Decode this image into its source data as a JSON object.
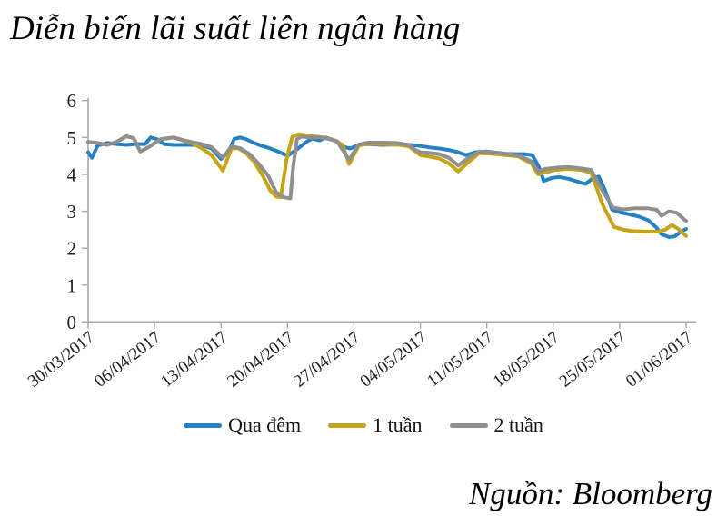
{
  "chart_data": {
    "type": "line",
    "title": "Diễn biến lãi suất liên ngân hàng",
    "source": "Nguồn: Bloomberg",
    "ylim": [
      0,
      6
    ],
    "yticks": [
      0,
      1,
      2,
      3,
      4,
      5,
      6
    ],
    "x_axis_unit": "days since 30/03/2017",
    "x_max_day": 63,
    "x_tick_days": [
      0,
      7,
      14,
      21,
      28,
      35,
      42,
      49,
      56,
      63
    ],
    "xtick_labels": [
      "30/03/2017",
      "06/04/2017",
      "13/04/2017",
      "20/04/2017",
      "27/04/2017",
      "04/05/2017",
      "11/05/2017",
      "18/05/2017",
      "25/05/2017",
      "01/06/2017"
    ],
    "grid": false,
    "legend_position": "bottom",
    "axis_color": "#a8a8a8",
    "series": [
      {
        "name": "Qua đêm",
        "color": "#2580c6",
        "points": [
          [
            0,
            4.6
          ],
          [
            0.4,
            4.45
          ],
          [
            1,
            4.78
          ],
          [
            2,
            4.85
          ],
          [
            3,
            4.82
          ],
          [
            4,
            4.8
          ],
          [
            5,
            4.82
          ],
          [
            6,
            4.82
          ],
          [
            6.6,
            5.0
          ],
          [
            7.2,
            4.96
          ],
          [
            8,
            4.82
          ],
          [
            9,
            4.8
          ],
          [
            10,
            4.8
          ],
          [
            11,
            4.8
          ],
          [
            12,
            4.79
          ],
          [
            13,
            4.7
          ],
          [
            14,
            4.42
          ],
          [
            14.8,
            4.62
          ],
          [
            15.4,
            4.96
          ],
          [
            16,
            5.0
          ],
          [
            16.6,
            4.96
          ],
          [
            17.4,
            4.86
          ],
          [
            18.2,
            4.78
          ],
          [
            19,
            4.72
          ],
          [
            20,
            4.62
          ],
          [
            21,
            4.5
          ],
          [
            22,
            4.68
          ],
          [
            23,
            4.88
          ],
          [
            23.6,
            4.97
          ],
          [
            24.4,
            4.92
          ],
          [
            25,
            5.0
          ],
          [
            25.6,
            4.95
          ],
          [
            26.2,
            4.9
          ],
          [
            27,
            4.74
          ],
          [
            27.6,
            4.7
          ],
          [
            28.4,
            4.79
          ],
          [
            29.5,
            4.82
          ],
          [
            31,
            4.8
          ],
          [
            32.5,
            4.81
          ],
          [
            34,
            4.8
          ],
          [
            35,
            4.77
          ],
          [
            36,
            4.73
          ],
          [
            37,
            4.7
          ],
          [
            38,
            4.66
          ],
          [
            39,
            4.6
          ],
          [
            39.8,
            4.52
          ],
          [
            40.8,
            4.6
          ],
          [
            42,
            4.62
          ],
          [
            43,
            4.59
          ],
          [
            44,
            4.56
          ],
          [
            45,
            4.55
          ],
          [
            46,
            4.55
          ],
          [
            46.8,
            4.52
          ],
          [
            47.5,
            4.2
          ],
          [
            48,
            3.82
          ],
          [
            48.8,
            3.9
          ],
          [
            49.6,
            3.93
          ],
          [
            50.6,
            3.88
          ],
          [
            51.6,
            3.8
          ],
          [
            52.4,
            3.74
          ],
          [
            53.2,
            3.9
          ],
          [
            53.8,
            3.94
          ],
          [
            54.4,
            3.6
          ],
          [
            55.2,
            3.05
          ],
          [
            56,
            2.97
          ],
          [
            57,
            2.92
          ],
          [
            58,
            2.86
          ],
          [
            59,
            2.76
          ],
          [
            59.8,
            2.58
          ],
          [
            60.4,
            2.38
          ],
          [
            61.2,
            2.3
          ],
          [
            61.8,
            2.32
          ],
          [
            62.4,
            2.44
          ],
          [
            63,
            2.52
          ]
        ]
      },
      {
        "name": "1 tuần",
        "color": "#c6a317",
        "points": [
          [
            0,
            4.88
          ],
          [
            1,
            4.85
          ],
          [
            2,
            4.8
          ],
          [
            3,
            4.88
          ],
          [
            4,
            5.03
          ],
          [
            4.8,
            4.98
          ],
          [
            5.5,
            4.62
          ],
          [
            6.4,
            4.74
          ],
          [
            7.6,
            4.95
          ],
          [
            9,
            5.0
          ],
          [
            10,
            4.92
          ],
          [
            11,
            4.84
          ],
          [
            12,
            4.7
          ],
          [
            13,
            4.52
          ],
          [
            14.2,
            4.1
          ],
          [
            15.1,
            4.7
          ],
          [
            15.8,
            4.71
          ],
          [
            16.6,
            4.58
          ],
          [
            17.5,
            4.34
          ],
          [
            18.4,
            3.96
          ],
          [
            19.2,
            3.56
          ],
          [
            19.8,
            3.4
          ],
          [
            20.3,
            3.38
          ],
          [
            20.9,
            4.4
          ],
          [
            21.5,
            5.02
          ],
          [
            22.2,
            5.09
          ],
          [
            23.2,
            5.05
          ],
          [
            24.2,
            5.02
          ],
          [
            25,
            4.99
          ],
          [
            26,
            4.92
          ],
          [
            26.8,
            4.8
          ],
          [
            27.5,
            4.28
          ],
          [
            28.5,
            4.78
          ],
          [
            29.5,
            4.83
          ],
          [
            31,
            4.82
          ],
          [
            32.5,
            4.81
          ],
          [
            33.8,
            4.76
          ],
          [
            34.4,
            4.64
          ],
          [
            35,
            4.52
          ],
          [
            36,
            4.48
          ],
          [
            37,
            4.43
          ],
          [
            38,
            4.3
          ],
          [
            39,
            4.08
          ],
          [
            40,
            4.32
          ],
          [
            41.2,
            4.58
          ],
          [
            42.5,
            4.56
          ],
          [
            44,
            4.52
          ],
          [
            45.3,
            4.49
          ],
          [
            46.7,
            4.3
          ],
          [
            47.4,
            4.0
          ],
          [
            48.2,
            4.06
          ],
          [
            49.2,
            4.12
          ],
          [
            50.5,
            4.15
          ],
          [
            52,
            4.12
          ],
          [
            53,
            4.04
          ],
          [
            54.2,
            3.18
          ],
          [
            55.4,
            2.58
          ],
          [
            56.4,
            2.5
          ],
          [
            57.5,
            2.46
          ],
          [
            59,
            2.45
          ],
          [
            60,
            2.45
          ],
          [
            60.8,
            2.5
          ],
          [
            61.5,
            2.63
          ],
          [
            62.2,
            2.52
          ],
          [
            63,
            2.33
          ]
        ]
      },
      {
        "name": "2 tuần",
        "color": "#8f8f8f",
        "points": [
          [
            0,
            4.88
          ],
          [
            1,
            4.85
          ],
          [
            2,
            4.8
          ],
          [
            3,
            4.88
          ],
          [
            4,
            5.03
          ],
          [
            4.8,
            4.98
          ],
          [
            5.5,
            4.62
          ],
          [
            6.4,
            4.74
          ],
          [
            7.6,
            4.95
          ],
          [
            9,
            5.0
          ],
          [
            10,
            4.93
          ],
          [
            11,
            4.87
          ],
          [
            12,
            4.82
          ],
          [
            13,
            4.74
          ],
          [
            14.2,
            4.45
          ],
          [
            15.1,
            4.76
          ],
          [
            16,
            4.71
          ],
          [
            17,
            4.55
          ],
          [
            18,
            4.28
          ],
          [
            19,
            3.95
          ],
          [
            19.8,
            3.52
          ],
          [
            20.6,
            3.38
          ],
          [
            21.3,
            3.35
          ],
          [
            21.6,
            4.2
          ],
          [
            22,
            4.96
          ],
          [
            22.5,
            5.02
          ],
          [
            23.4,
            5.0
          ],
          [
            24.4,
            5.0
          ],
          [
            25.2,
            4.97
          ],
          [
            26.2,
            4.9
          ],
          [
            27.5,
            4.4
          ],
          [
            28.5,
            4.81
          ],
          [
            29.5,
            4.86
          ],
          [
            31,
            4.86
          ],
          [
            32.5,
            4.85
          ],
          [
            33.8,
            4.8
          ],
          [
            34.4,
            4.67
          ],
          [
            35,
            4.6
          ],
          [
            36,
            4.58
          ],
          [
            37,
            4.55
          ],
          [
            38,
            4.45
          ],
          [
            39,
            4.24
          ],
          [
            40,
            4.44
          ],
          [
            41.2,
            4.62
          ],
          [
            42.5,
            4.6
          ],
          [
            44,
            4.56
          ],
          [
            45.3,
            4.52
          ],
          [
            46.7,
            4.35
          ],
          [
            47.4,
            4.08
          ],
          [
            48.2,
            4.15
          ],
          [
            49.2,
            4.18
          ],
          [
            50.5,
            4.2
          ],
          [
            52,
            4.16
          ],
          [
            53,
            4.12
          ],
          [
            54.2,
            3.55
          ],
          [
            55.3,
            3.1
          ],
          [
            56.4,
            3.05
          ],
          [
            57.5,
            3.08
          ],
          [
            59,
            3.08
          ],
          [
            59.9,
            3.04
          ],
          [
            60.4,
            2.88
          ],
          [
            61.2,
            3.0
          ],
          [
            62,
            2.96
          ],
          [
            63,
            2.74
          ]
        ]
      }
    ]
  }
}
